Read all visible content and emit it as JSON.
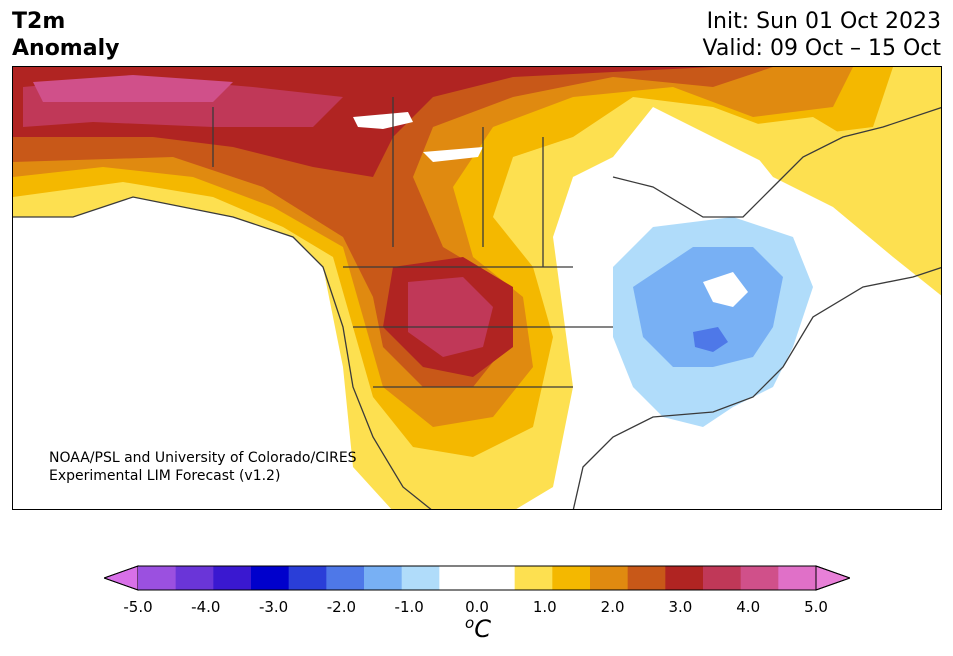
{
  "header": {
    "title_line1": "T2m",
    "title_line2": "Anomaly",
    "init_text": "Init: Sun 01 Oct 2023",
    "valid_text": "Valid: 09 Oct – 15 Oct"
  },
  "credit": {
    "line1": "NOAA/PSL and University of Colorado/CIRES",
    "line2": "Experimental LIM Forecast (v1.2)"
  },
  "colorbar": {
    "colors": [
      "#d870e8",
      "#9b50e0",
      "#6a35d8",
      "#3a18d0",
      "#0000cc",
      "#2a3ed8",
      "#4e78e8",
      "#78b0f4",
      "#b0dcfa",
      "#ffffff",
      "#ffffff",
      "#fde050",
      "#f4b800",
      "#e08a10",
      "#c85818",
      "#b02422",
      "#c03858",
      "#d0508a",
      "#e070c8",
      "#e880d8"
    ],
    "tick_labels": [
      "-5.0",
      "-4.0",
      "-3.0",
      "-2.0",
      "-1.0",
      "0.0",
      "1.0",
      "2.0",
      "3.0",
      "4.0",
      "5.0"
    ],
    "unit_base": "C",
    "unit_sup": "o"
  }
}
